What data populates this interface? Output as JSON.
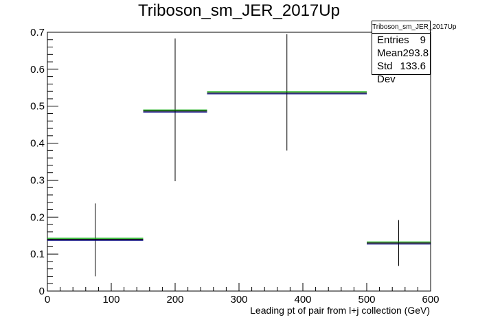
{
  "chart_data": {
    "type": "histogram",
    "title": "Triboson_sm_JER_2017Up",
    "xlabel": "Leading pt of pair from l+j collection (GeV)",
    "ylabel": "",
    "xlim": [
      0,
      600
    ],
    "ylim": [
      0,
      0.7
    ],
    "x_ticks": [
      "0",
      "100",
      "200",
      "300",
      "400",
      "500",
      "600"
    ],
    "y_ticks": [
      "0",
      "0.1",
      "0.2",
      "0.3",
      "0.4",
      "0.5",
      "0.6",
      "0.7"
    ],
    "bins": [
      {
        "xlow": 0,
        "xhigh": 150,
        "value": 0.14,
        "err_low": 0.04,
        "err_high": 0.237
      },
      {
        "xlow": 150,
        "xhigh": 250,
        "value": 0.487,
        "err_low": 0.297,
        "err_high": 0.683
      },
      {
        "xlow": 250,
        "xhigh": 500,
        "value": 0.536,
        "err_low": 0.38,
        "err_high": 0.695
      },
      {
        "xlow": 500,
        "xhigh": 600,
        "value": 0.13,
        "err_low": 0.068,
        "err_high": 0.192
      }
    ],
    "overlay_colors": [
      "#00aa00",
      "#000080"
    ],
    "stats": {
      "name": "Triboson_sm_JER_2017Up",
      "entries_label": "Entries",
      "entries": "9",
      "mean_label": "Mean",
      "mean": "293.8",
      "stddev_label": "Std Dev",
      "stddev": "133.6"
    }
  }
}
